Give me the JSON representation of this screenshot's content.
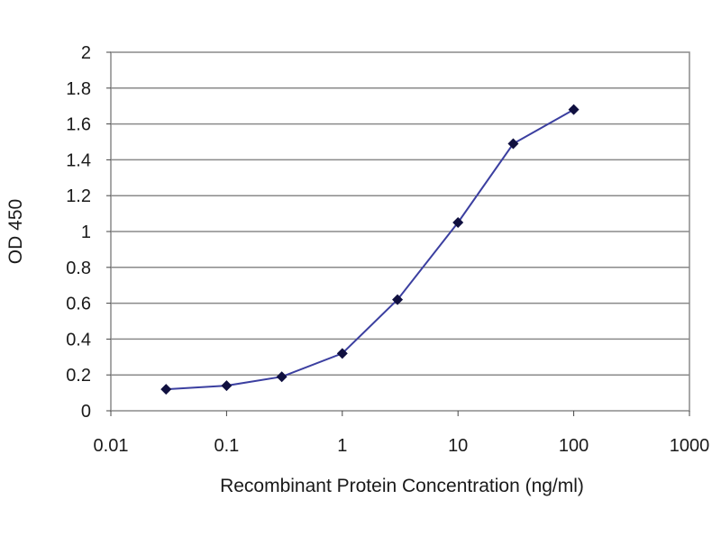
{
  "chart_data": {
    "type": "line",
    "title": "",
    "xlabel": "Recombinant Protein Concentration (ng/ml)",
    "ylabel": "OD 450",
    "x_scale": "log",
    "xlim": [
      0.01,
      1000
    ],
    "ylim": [
      0,
      2
    ],
    "x_ticks": [
      0.01,
      0.1,
      1,
      10,
      100,
      1000
    ],
    "x_tick_labels": [
      "0.01",
      "0.1",
      "1",
      "10",
      "100",
      "1000"
    ],
    "y_ticks": [
      0,
      0.2,
      0.4,
      0.6,
      0.8,
      1,
      1.2,
      1.4,
      1.6,
      1.8,
      2
    ],
    "y_tick_labels": [
      "0",
      "0.2",
      "0.4",
      "0.6",
      "0.8",
      "1",
      "1.2",
      "1.4",
      "1.6",
      "1.8",
      "2"
    ],
    "grid": "horizontal",
    "legend": "none",
    "series": [
      {
        "x": [
          0.03,
          0.1,
          0.3,
          1,
          3,
          10,
          30,
          100
        ],
        "y": [
          0.12,
          0.14,
          0.19,
          0.32,
          0.62,
          1.05,
          1.49,
          1.68
        ]
      }
    ],
    "colors": {
      "line": "#3b3fa0",
      "marker": "#101040",
      "grid": "#8a8a8a",
      "plot_border": "#8a8a8a"
    }
  }
}
